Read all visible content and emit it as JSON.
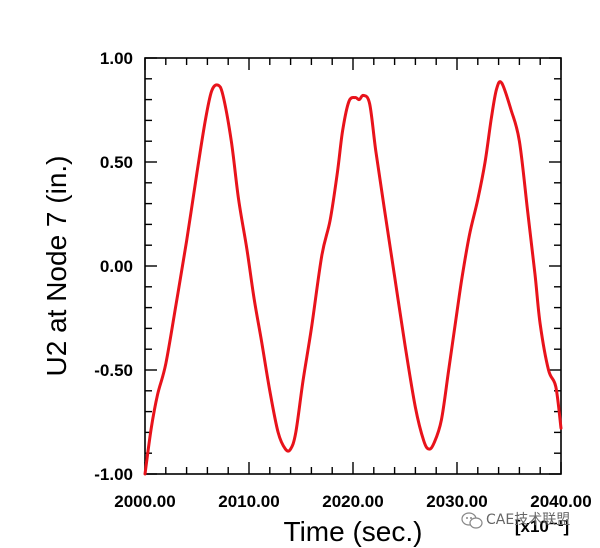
{
  "chart_data": {
    "type": "line",
    "title": "",
    "xlabel": "Time (sec.)",
    "ylabel": "U2 at Node 7 (in.)",
    "x_multiplier": "[x10⁻¹]",
    "xlim": [
      2000,
      2040
    ],
    "ylim": [
      -1.0,
      1.0
    ],
    "x_ticks": [
      "2000.00",
      "2010.00",
      "2020.00",
      "2030.00",
      "2040.00"
    ],
    "y_ticks": [
      "1.00",
      "0.50",
      "0.00",
      "-0.50",
      "-1.00"
    ],
    "grid": false,
    "series": [
      {
        "color": "#e8131b",
        "x": [
          2000.0,
          2000.6,
          2001.2,
          2002.0,
          2003.0,
          2004.0,
          2005.0,
          2005.8,
          2006.4,
          2007.0,
          2007.5,
          2008.3,
          2009.0,
          2009.8,
          2010.5,
          2011.2,
          2012.0,
          2012.8,
          2013.5,
          2014.0,
          2014.5,
          2015.2,
          2016.0,
          2017.0,
          2017.8,
          2018.5,
          2019.0,
          2019.6,
          2020.2,
          2020.6,
          2021.0,
          2021.6,
          2022.2,
          2023.0,
          2024.0,
          2025.0,
          2026.0,
          2026.8,
          2027.3,
          2027.8,
          2028.5,
          2029.2,
          2030.0,
          2030.5,
          2031.2,
          2032.0,
          2032.7,
          2033.3,
          2033.8,
          2034.3,
          2035.2,
          2036.0,
          2036.8,
          2037.5,
          2038.0,
          2038.8,
          2039.5,
          2040.0
        ],
        "y": [
          -1.0,
          -0.78,
          -0.62,
          -0.47,
          -0.18,
          0.12,
          0.45,
          0.7,
          0.84,
          0.87,
          0.82,
          0.6,
          0.32,
          0.08,
          -0.16,
          -0.36,
          -0.6,
          -0.8,
          -0.88,
          -0.88,
          -0.8,
          -0.55,
          -0.3,
          0.05,
          0.22,
          0.45,
          0.65,
          0.79,
          0.81,
          0.8,
          0.82,
          0.78,
          0.55,
          0.28,
          -0.05,
          -0.38,
          -0.68,
          -0.84,
          -0.88,
          -0.85,
          -0.74,
          -0.5,
          -0.22,
          -0.05,
          0.15,
          0.32,
          0.5,
          0.71,
          0.85,
          0.88,
          0.75,
          0.6,
          0.26,
          -0.04,
          -0.28,
          -0.5,
          -0.58,
          -0.78
        ]
      }
    ]
  },
  "watermark": {
    "text": "CAE技术联盟",
    "icon": "wechat-icon"
  }
}
